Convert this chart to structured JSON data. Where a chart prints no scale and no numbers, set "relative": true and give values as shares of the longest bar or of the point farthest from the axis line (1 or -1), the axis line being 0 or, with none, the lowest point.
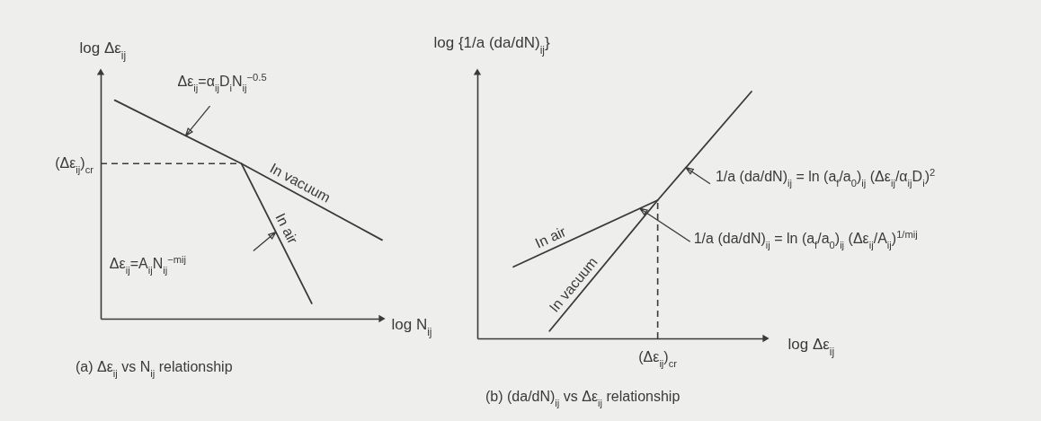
{
  "chart_data": [
    {
      "type": "line",
      "title": "(a) Δε$_{ij}$ vs N$_{ij}$ relationship",
      "xlabel": "log N$_{ij}$",
      "ylabel": "log Δε$_{ij}$",
      "relative": true,
      "categories": [
        null,
        null,
        null,
        null,
        null,
        null,
        null,
        null,
        null,
        null,
        null,
        null,
        null,
        null,
        null,
        null,
        null,
        null,
        null,
        null,
        null,
        null,
        null,
        null,
        null,
        null,
        null,
        null,
        null,
        null,
        null,
        null,
        null,
        null,
        null,
        null,
        null,
        null,
        null,
        null,
        null
      ],
      "series": [
        {
          "name": "In vacuum",
          "color": "#3a3a3a",
          "values": [
            null,
            null,
            1,
            null,
            null,
            null,
            null,
            null,
            null,
            null,
            null,
            null,
            null,
            null,
            null,
            null,
            null,
            null,
            null,
            null,
            0.71,
            null,
            null,
            null,
            null,
            null,
            null,
            null,
            null,
            null,
            null,
            null,
            null,
            null,
            null,
            null,
            null,
            null,
            null,
            null,
            0.36
          ]
        },
        {
          "name": "In air",
          "color": "#3a3a3a",
          "values": [
            null,
            null,
            null,
            null,
            null,
            null,
            null,
            null,
            null,
            null,
            null,
            null,
            null,
            null,
            null,
            null,
            null,
            null,
            null,
            null,
            0.71,
            null,
            null,
            null,
            null,
            null,
            null,
            null,
            null,
            null,
            0.07,
            null,
            null,
            null,
            null,
            null,
            null,
            null,
            null,
            null,
            null
          ]
        }
      ],
      "ref_lines": [
        {
          "axis": "y",
          "value": 0.71,
          "label": "(Δε$_{ij}$)$_{cr}$",
          "line_style": "dashed"
        }
      ],
      "annotations": [
        "Δε$_{ij}$=α$_{ij}$D$_{i}$N$_{ij}$$^{−0.5}$",
        "Δε$_{ij}$=A$_{ij}$N$_{ij}$$^{−mij}$"
      ]
    },
    {
      "type": "line",
      "title": "(b) (da/dN)$_{ij}$ vs Δε$_{ij}$ relationship",
      "xlabel": "log Δε$_{ij}$",
      "ylabel": "log {1/a (da/dN)$_{ij}$}",
      "relative": true,
      "categories": [
        null,
        null,
        null,
        null,
        null,
        null,
        null,
        null,
        null,
        null,
        null,
        null,
        null,
        null,
        null,
        null,
        null,
        null,
        null,
        null,
        null,
        null,
        null,
        null,
        null,
        null,
        null,
        null,
        null,
        null,
        null,
        null,
        null,
        null,
        null,
        null,
        null,
        null,
        null,
        null,
        null
      ],
      "series": [
        {
          "name": "In vacuum",
          "color": "#3a3a3a",
          "values": [
            null,
            null,
            null,
            null,
            null,
            null,
            null,
            null,
            null,
            null,
            0.03,
            null,
            null,
            null,
            null,
            null,
            null,
            null,
            null,
            null,
            null,
            null,
            null,
            null,
            null,
            0.56,
            null,
            null,
            null,
            null,
            null,
            null,
            null,
            null,
            null,
            null,
            null,
            null,
            1,
            null,
            null
          ]
        },
        {
          "name": "In air",
          "color": "#3a3a3a",
          "values": [
            null,
            null,
            null,
            null,
            null,
            0.29,
            null,
            null,
            null,
            null,
            null,
            null,
            null,
            null,
            null,
            null,
            null,
            null,
            null,
            null,
            null,
            null,
            null,
            null,
            null,
            0.56,
            null,
            null,
            null,
            null,
            null,
            null,
            null,
            null,
            null,
            null,
            null,
            null,
            null,
            null,
            null
          ]
        }
      ],
      "ref_lines": [
        {
          "axis": "x",
          "value": "(Δε$_{ij}$)$_{cr}$",
          "line_style": "dashed"
        }
      ],
      "annotations": [
        "1/a (da/dN)$_{ij}$ = ln (a$_{f}$/a$_{0}$)$_{ij}$ (Δε$_{ij}$/α$_{ij}$D$_{i}$)$^{2}$",
        "1/a (da/dN)$_{ij}$ = ln (a$_{f}$/a$_{0}$)$_{ij}$ (Δε$_{ij}$/A$_{ij}$)$^{1/mij}$"
      ]
    }
  ]
}
